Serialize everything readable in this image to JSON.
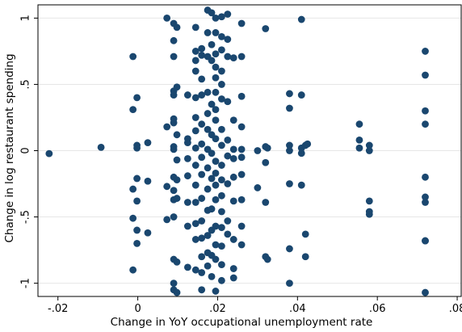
{
  "chart_data": {
    "type": "scatter",
    "xlabel": "Change in YoY occupational unemployment rate",
    "ylabel": "Change in log restaurant spending",
    "xlim": [
      -0.025,
      0.081
    ],
    "ylim": [
      -1.1,
      1.1
    ],
    "x_ticks": [
      -0.02,
      0,
      0.02,
      0.04,
      0.06,
      0.08
    ],
    "x_tick_labels": [
      "-.02",
      "0",
      ".02",
      ".04",
      ".06",
      ".08"
    ],
    "y_ticks": [
      -1,
      -0.5,
      0,
      0.5,
      1
    ],
    "y_tick_labels": [
      "-1",
      "-.5",
      "0",
      ".5",
      "1"
    ],
    "grid": true,
    "marker_color": "#1a476f",
    "points": [
      [
        -0.0222,
        -0.022
      ],
      [
        -0.0092,
        0.025
      ],
      [
        -0.0012,
        0.71
      ],
      [
        -0.0012,
        0.31
      ],
      [
        -0.0012,
        -0.29
      ],
      [
        -0.0012,
        -0.51
      ],
      [
        -0.0012,
        -0.9
      ],
      [
        -0.0002,
        0.4
      ],
      [
        -0.0002,
        0.04
      ],
      [
        -0.0002,
        0.02
      ],
      [
        -0.0002,
        -0.21
      ],
      [
        -0.0002,
        -0.38
      ],
      [
        -0.0002,
        -0.6
      ],
      [
        -0.0002,
        -0.7
      ],
      [
        0.0025,
        0.06
      ],
      [
        0.0025,
        -0.23
      ],
      [
        0.0025,
        -0.62
      ],
      [
        0.0073,
        1.0
      ],
      [
        0.0073,
        0.18
      ],
      [
        0.0073,
        -0.27
      ],
      [
        0.0073,
        -0.52
      ],
      [
        0.009,
        0.96
      ],
      [
        0.009,
        0.83
      ],
      [
        0.009,
        0.71
      ],
      [
        0.009,
        0.45
      ],
      [
        0.009,
        0.42
      ],
      [
        0.009,
        0.24
      ],
      [
        0.009,
        0.21
      ],
      [
        0.009,
        0.03
      ],
      [
        0.009,
        0.01
      ],
      [
        0.009,
        -0.2
      ],
      [
        0.009,
        -0.3
      ],
      [
        0.009,
        -0.37
      ],
      [
        0.009,
        -0.5
      ],
      [
        0.009,
        -0.82
      ],
      [
        0.009,
        -1.0
      ],
      [
        0.009,
        -1.05
      ],
      [
        0.0098,
        0.93
      ],
      [
        0.0098,
        0.48
      ],
      [
        0.0098,
        0.12
      ],
      [
        0.0098,
        -0.07
      ],
      [
        0.0098,
        -0.22
      ],
      [
        0.0098,
        -0.36
      ],
      [
        0.0098,
        -0.84
      ],
      [
        0.0098,
        -1.07
      ],
      [
        0.0125,
        0.42
      ],
      [
        0.0125,
        0.09
      ],
      [
        0.0125,
        0.06
      ],
      [
        0.0125,
        -0.06
      ],
      [
        0.0125,
        -0.19
      ],
      [
        0.0125,
        -0.39
      ],
      [
        0.0125,
        -0.57
      ],
      [
        0.0125,
        -0.88
      ],
      [
        0.0145,
        0.93
      ],
      [
        0.0145,
        0.75
      ],
      [
        0.0145,
        0.68
      ],
      [
        0.0145,
        0.6
      ],
      [
        0.0145,
        0.4
      ],
      [
        0.0145,
        0.25
      ],
      [
        0.0145,
        0.15
      ],
      [
        0.0145,
        0.02
      ],
      [
        0.0145,
        -0.11
      ],
      [
        0.0145,
        -0.26
      ],
      [
        0.0145,
        -0.39
      ],
      [
        0.0145,
        -0.55
      ],
      [
        0.0145,
        -0.67
      ],
      [
        0.0145,
        -0.9
      ],
      [
        0.016,
        0.77
      ],
      [
        0.016,
        0.72
      ],
      [
        0.016,
        0.54
      ],
      [
        0.016,
        0.42
      ],
      [
        0.016,
        0.2
      ],
      [
        0.016,
        0.05
      ],
      [
        0.016,
        -0.05
      ],
      [
        0.016,
        -0.18
      ],
      [
        0.016,
        -0.36
      ],
      [
        0.016,
        -0.53
      ],
      [
        0.016,
        -0.66
      ],
      [
        0.016,
        -0.8
      ],
      [
        0.016,
        -0.92
      ],
      [
        0.016,
        -1.05
      ],
      [
        0.0175,
        1.06
      ],
      [
        0.0175,
        0.89
      ],
      [
        0.0175,
        0.71
      ],
      [
        0.0175,
        0.44
      ],
      [
        0.0175,
        0.28
      ],
      [
        0.0175,
        0.16
      ],
      [
        0.0175,
        0.01
      ],
      [
        0.0175,
        -0.13
      ],
      [
        0.0175,
        -0.29
      ],
      [
        0.0175,
        -0.45
      ],
      [
        0.0175,
        -0.64
      ],
      [
        0.0175,
        -0.77
      ],
      [
        0.0175,
        -0.87
      ],
      [
        0.0185,
        1.04
      ],
      [
        0.0185,
        0.8
      ],
      [
        0.0185,
        0.68
      ],
      [
        0.0185,
        0.35
      ],
      [
        0.0185,
        0.12
      ],
      [
        0.0185,
        -0.02
      ],
      [
        0.0185,
        -0.21
      ],
      [
        0.0185,
        -0.44
      ],
      [
        0.0185,
        -0.6
      ],
      [
        0.0185,
        -0.79
      ],
      [
        0.0185,
        -0.95
      ],
      [
        0.0195,
        1.0
      ],
      [
        0.0195,
        0.89
      ],
      [
        0.0195,
        0.73
      ],
      [
        0.0195,
        0.63
      ],
      [
        0.0195,
        0.55
      ],
      [
        0.0195,
        0.44
      ],
      [
        0.0195,
        0.31
      ],
      [
        0.0195,
        0.23
      ],
      [
        0.0195,
        0.09
      ],
      [
        0.0195,
        -0.08
      ],
      [
        0.0195,
        -0.17
      ],
      [
        0.0195,
        -0.26
      ],
      [
        0.0195,
        -0.37
      ],
      [
        0.0195,
        -0.57
      ],
      [
        0.0195,
        -0.71
      ],
      [
        0.0195,
        -0.82
      ],
      [
        0.0195,
        -1.06
      ],
      [
        0.021,
        1.01
      ],
      [
        0.021,
        0.86
      ],
      [
        0.021,
        0.76
      ],
      [
        0.021,
        0.6
      ],
      [
        0.021,
        0.5
      ],
      [
        0.021,
        0.39
      ],
      [
        0.021,
        0.16
      ],
      [
        0.021,
        0.04
      ],
      [
        0.021,
        -0.11
      ],
      [
        0.021,
        -0.22
      ],
      [
        0.021,
        -0.34
      ],
      [
        0.021,
        -0.46
      ],
      [
        0.021,
        -0.58
      ],
      [
        0.021,
        -0.72
      ],
      [
        0.021,
        -0.86
      ],
      [
        0.021,
        -0.98
      ],
      [
        0.0225,
        1.03
      ],
      [
        0.0225,
        0.84
      ],
      [
        0.0225,
        0.71
      ],
      [
        0.0225,
        0.37
      ],
      [
        0.0225,
        0.08
      ],
      [
        0.0225,
        -0.04
      ],
      [
        0.0225,
        -0.25
      ],
      [
        0.0225,
        -0.53
      ],
      [
        0.0225,
        -0.63
      ],
      [
        0.024,
        0.7
      ],
      [
        0.024,
        0.23
      ],
      [
        0.024,
        0.01
      ],
      [
        0.024,
        -0.06
      ],
      [
        0.024,
        -0.2
      ],
      [
        0.024,
        -0.38
      ],
      [
        0.024,
        -0.67
      ],
      [
        0.024,
        -0.89
      ],
      [
        0.024,
        -0.96
      ],
      [
        0.026,
        0.96
      ],
      [
        0.026,
        0.71
      ],
      [
        0.026,
        0.41
      ],
      [
        0.026,
        0.18
      ],
      [
        0.026,
        0.01
      ],
      [
        0.026,
        -0.05
      ],
      [
        0.026,
        -0.18
      ],
      [
        0.026,
        -0.37
      ],
      [
        0.026,
        -0.57
      ],
      [
        0.026,
        -0.71
      ],
      [
        0.03,
        0.0
      ],
      [
        0.03,
        -0.28
      ],
      [
        0.032,
        0.92
      ],
      [
        0.032,
        0.03
      ],
      [
        0.032,
        -0.09
      ],
      [
        0.032,
        -0.39
      ],
      [
        0.032,
        -0.8
      ],
      [
        0.0325,
        0.02
      ],
      [
        0.0325,
        -0.82
      ],
      [
        0.038,
        0.43
      ],
      [
        0.038,
        0.32
      ],
      [
        0.038,
        0.04
      ],
      [
        0.038,
        0.0
      ],
      [
        0.038,
        -0.25
      ],
      [
        0.038,
        -0.74
      ],
      [
        0.038,
        -1.0
      ],
      [
        0.041,
        0.99
      ],
      [
        0.041,
        0.42
      ],
      [
        0.041,
        0.02
      ],
      [
        0.041,
        -0.02
      ],
      [
        0.041,
        -0.26
      ],
      [
        0.042,
        0.04
      ],
      [
        0.042,
        -0.63
      ],
      [
        0.042,
        -0.8
      ],
      [
        0.0425,
        0.05
      ],
      [
        0.0555,
        0.2
      ],
      [
        0.0555,
        0.08
      ],
      [
        0.0555,
        0.02
      ],
      [
        0.058,
        0.04
      ],
      [
        0.058,
        0.0
      ],
      [
        0.058,
        -0.38
      ],
      [
        0.058,
        -0.46
      ],
      [
        0.058,
        -0.48
      ],
      [
        0.072,
        0.75
      ],
      [
        0.072,
        0.57
      ],
      [
        0.072,
        0.3
      ],
      [
        0.072,
        0.2
      ],
      [
        0.072,
        -0.2
      ],
      [
        0.072,
        -0.35
      ],
      [
        0.072,
        -0.39
      ],
      [
        0.072,
        -0.68
      ],
      [
        0.072,
        -0.68
      ],
      [
        0.072,
        -1.07
      ]
    ]
  }
}
